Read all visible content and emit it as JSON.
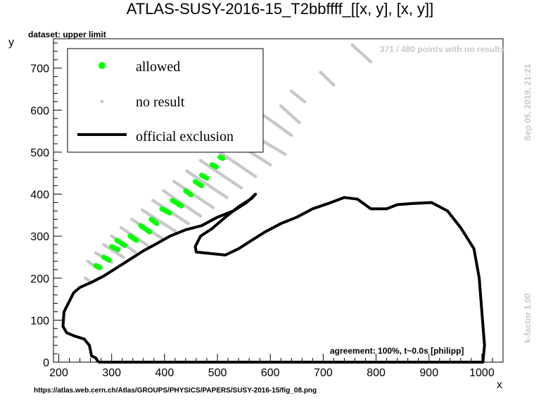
{
  "title": "ATLAS-SUSY-2016-15_T2bbffff_[[x, y], [x, y]]",
  "dataset_label": "dataset: upper limit",
  "stats_label": "371 / 480 points with no results",
  "timestamp_label": "Sep 05, 2019, 21:21",
  "kfactor_label": "k-factor 1.00",
  "agreement_label": "agreement: 100%, t~0.0s [philipp]",
  "source_url": "https://atlas.web.cern.ch/Atlas/GROUPS/PHYSICS/PAPERS/SUSY-2016-15/fig_08.png",
  "colors": {
    "allowed": "#00ff00",
    "no_result": "#c8c8c8",
    "exclusion": "#000000"
  },
  "chart_data": {
    "type": "scatter",
    "xlabel": "x",
    "ylabel": "y",
    "xlim": [
      190,
      1040
    ],
    "ylim": [
      0,
      770
    ],
    "x_ticks": [
      200,
      300,
      400,
      500,
      600,
      700,
      800,
      900,
      1000
    ],
    "y_ticks": [
      0,
      100,
      200,
      300,
      400,
      500,
      600,
      700
    ],
    "legend": {
      "position": "top-left",
      "entries": [
        "allowed",
        "no result",
        "official exclusion"
      ]
    },
    "series": [
      {
        "name": "allowed",
        "marker": "filled-circle",
        "segments": [
          [
            [
              270,
              230
            ],
            [
              278,
              225
            ]
          ],
          [
            [
              285,
              250
            ],
            [
              295,
              243
            ]
          ],
          [
            [
              300,
              275
            ],
            [
              312,
              268
            ]
          ],
          [
            [
              310,
              290
            ],
            [
              325,
              278
            ]
          ],
          [
            [
              335,
              300
            ],
            [
              347,
              290
            ]
          ],
          [
            [
              355,
              325
            ],
            [
              372,
              310
            ]
          ],
          [
            [
              375,
              340
            ],
            [
              385,
              330
            ]
          ],
          [
            [
              395,
              365
            ],
            [
              410,
              355
            ]
          ],
          [
            [
              415,
              385
            ],
            [
              432,
              372
            ]
          ],
          [
            [
              440,
              408
            ],
            [
              450,
              398
            ]
          ],
          [
            [
              458,
              430
            ],
            [
              470,
              420
            ]
          ],
          [
            [
              470,
              445
            ],
            [
              480,
              438
            ]
          ],
          [
            [
              490,
              470
            ],
            [
              498,
              465
            ]
          ],
          [
            [
              505,
              488
            ],
            [
              510,
              485
            ]
          ]
        ]
      },
      {
        "name": "no result",
        "marker": "small-circle",
        "segments": [
          [
            [
              250,
              200
            ],
            [
              262,
              190
            ]
          ],
          [
            [
              255,
              240
            ],
            [
              275,
              222
            ]
          ],
          [
            [
              270,
              260
            ],
            [
              300,
              238
            ]
          ],
          [
            [
              285,
              280
            ],
            [
              322,
              250
            ]
          ],
          [
            [
              300,
              300
            ],
            [
              345,
              262
            ]
          ],
          [
            [
              318,
              320
            ],
            [
              368,
              278
            ]
          ],
          [
            [
              338,
              340
            ],
            [
              395,
              295
            ]
          ],
          [
            [
              358,
              362
            ],
            [
              420,
              312
            ]
          ],
          [
            [
              378,
              385
            ],
            [
              445,
              330
            ]
          ],
          [
            [
              398,
              408
            ],
            [
              468,
              348
            ]
          ],
          [
            [
              418,
              430
            ],
            [
              492,
              368
            ]
          ],
          [
            [
              442,
              455
            ],
            [
              518,
              392
            ]
          ],
          [
            [
              468,
              480
            ],
            [
              545,
              415
            ]
          ],
          [
            [
              495,
              508
            ],
            [
              572,
              442
            ]
          ],
          [
            [
              522,
              532
            ],
            [
              600,
              470
            ]
          ],
          [
            [
              548,
              555
            ],
            [
              628,
              495
            ]
          ],
          [
            [
              585,
              590
            ],
            [
              640,
              540
            ]
          ],
          [
            [
              620,
              610
            ],
            [
              655,
              570
            ]
          ],
          [
            [
              640,
              645
            ],
            [
              665,
              620
            ]
          ],
          [
            [
              695,
              690
            ],
            [
              720,
              660
            ]
          ],
          [
            [
              755,
              755
            ],
            [
              790,
              715
            ]
          ]
        ]
      },
      {
        "name": "official exclusion",
        "type": "line",
        "points": [
          [
            275,
            0
          ],
          [
            270,
            10
          ],
          [
            262,
            15
          ],
          [
            258,
            40
          ],
          [
            248,
            55
          ],
          [
            230,
            62
          ],
          [
            215,
            70
          ],
          [
            208,
            85
          ],
          [
            210,
            120
          ],
          [
            220,
            145
          ],
          [
            228,
            165
          ],
          [
            240,
            178
          ],
          [
            262,
            190
          ],
          [
            285,
            205
          ],
          [
            310,
            225
          ],
          [
            335,
            245
          ],
          [
            360,
            265
          ],
          [
            385,
            282
          ],
          [
            410,
            300
          ],
          [
            440,
            315
          ],
          [
            470,
            325
          ],
          [
            500,
            345
          ],
          [
            530,
            360
          ],
          [
            555,
            380
          ],
          [
            572,
            400
          ],
          [
            565,
            390
          ],
          [
            540,
            370
          ],
          [
            515,
            345
          ],
          [
            490,
            318
          ],
          [
            468,
            300
          ],
          [
            458,
            275
          ],
          [
            460,
            262
          ],
          [
            515,
            255
          ],
          [
            540,
            270
          ],
          [
            565,
            290
          ],
          [
            590,
            310
          ],
          [
            620,
            330
          ],
          [
            650,
            345
          ],
          [
            680,
            365
          ],
          [
            710,
            378
          ],
          [
            740,
            392
          ],
          [
            765,
            388
          ],
          [
            790,
            365
          ],
          [
            820,
            365
          ],
          [
            840,
            375
          ],
          [
            870,
            378
          ],
          [
            905,
            380
          ],
          [
            935,
            360
          ],
          [
            960,
            320
          ],
          [
            985,
            270
          ],
          [
            995,
            200
          ],
          [
            1000,
            120
          ],
          [
            1005,
            40
          ],
          [
            1002,
            0
          ],
          [
            900,
            0
          ],
          [
            700,
            0
          ],
          [
            500,
            0
          ],
          [
            275,
            0
          ]
        ]
      }
    ]
  }
}
